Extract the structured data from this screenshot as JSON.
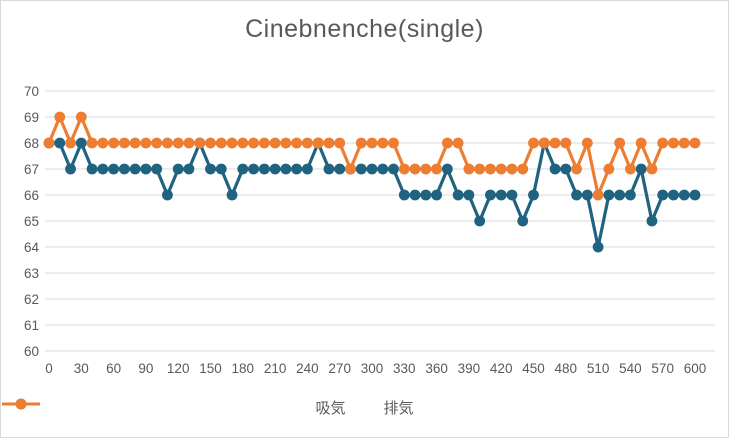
{
  "title": "Cinebnenche(single)",
  "colors": {
    "series_intake": "#1F6380",
    "series_exhaust": "#ED7D31",
    "gridline": "#D9D9D9",
    "axis_text": "#595959",
    "title_text": "#595959",
    "chart_border": "#D9D9D9",
    "background": "#FFFFFF"
  },
  "legend": {
    "items": [
      {
        "label": "吸気",
        "color": "#1F6380"
      },
      {
        "label": "排気",
        "color": "#ED7D31"
      }
    ]
  },
  "chart_data": {
    "type": "line",
    "title": "Cinebnenche(single)",
    "xlabel": "",
    "ylabel": "",
    "x": [
      0,
      10,
      20,
      30,
      40,
      50,
      60,
      70,
      80,
      90,
      100,
      110,
      120,
      130,
      140,
      150,
      160,
      170,
      180,
      190,
      200,
      210,
      220,
      230,
      240,
      250,
      260,
      270,
      280,
      290,
      300,
      310,
      320,
      330,
      340,
      350,
      360,
      370,
      380,
      390,
      400,
      410,
      420,
      430,
      440,
      450,
      460,
      470,
      480,
      490,
      500,
      510,
      520,
      530,
      540,
      550,
      560,
      570,
      580,
      590,
      600
    ],
    "series": [
      {
        "name": "吸気",
        "color": "#1F6380",
        "values": [
          68,
          68,
          67,
          68,
          67,
          67,
          67,
          67,
          67,
          67,
          67,
          66,
          67,
          67,
          68,
          67,
          67,
          66,
          67,
          67,
          67,
          67,
          67,
          67,
          67,
          68,
          67,
          67,
          67,
          67,
          67,
          67,
          67,
          66,
          66,
          66,
          66,
          67,
          66,
          66,
          65,
          66,
          66,
          66,
          65,
          66,
          68,
          67,
          67,
          66,
          66,
          64,
          66,
          66,
          66,
          67,
          65,
          66,
          66,
          66,
          66
        ]
      },
      {
        "name": "排気",
        "color": "#ED7D31",
        "values": [
          68,
          69,
          68,
          69,
          68,
          68,
          68,
          68,
          68,
          68,
          68,
          68,
          68,
          68,
          68,
          68,
          68,
          68,
          68,
          68,
          68,
          68,
          68,
          68,
          68,
          68,
          68,
          68,
          67,
          68,
          68,
          68,
          68,
          67,
          67,
          67,
          67,
          68,
          68,
          67,
          67,
          67,
          67,
          67,
          67,
          68,
          68,
          68,
          68,
          67,
          68,
          66,
          67,
          68,
          67,
          68,
          67,
          68,
          68,
          68,
          68
        ]
      }
    ],
    "ylim": [
      60,
      70
    ],
    "ytick_step": 1,
    "yticks": [
      60,
      61,
      62,
      63,
      64,
      65,
      66,
      67,
      68,
      69,
      70
    ],
    "xticks": [
      0,
      30,
      60,
      90,
      120,
      150,
      180,
      210,
      240,
      270,
      300,
      330,
      360,
      390,
      420,
      450,
      480,
      510,
      540,
      570,
      600
    ],
    "grid": true,
    "legend_position": "bottom",
    "marker": "circle"
  }
}
